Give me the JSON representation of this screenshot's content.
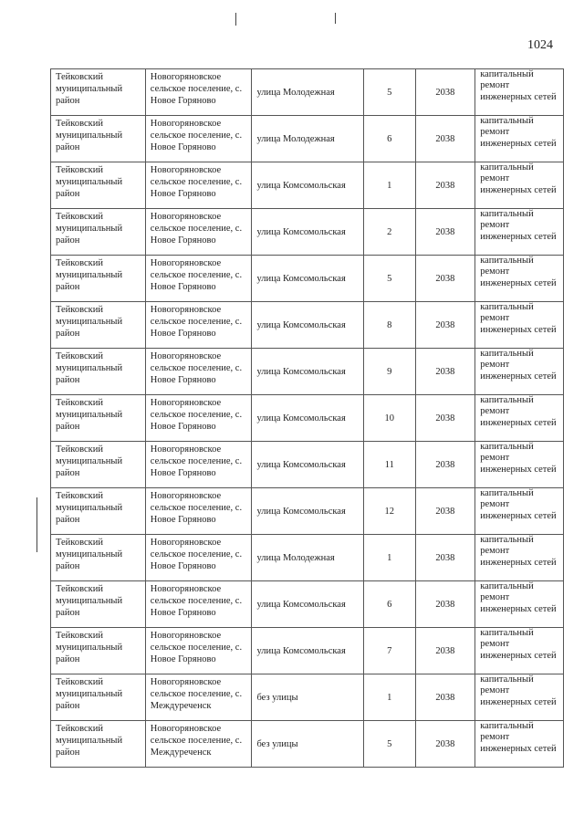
{
  "page_number": "1024",
  "rows": [
    {
      "district": "Тейковский муниципальный район",
      "settlement": "Новогоряновское сельское поселение, с. Новое Горяново",
      "street": "улица Молодежная",
      "house": "5",
      "year": "2038",
      "work": "капитальный ремонт инженерных сетей"
    },
    {
      "district": "Тейковский муниципальный район",
      "settlement": "Новогоряновское сельское поселение, с. Новое Горяново",
      "street": "улица Молодежная",
      "house": "6",
      "year": "2038",
      "work": "капитальный ремонт инженерных сетей"
    },
    {
      "district": "Тейковский муниципальный район",
      "settlement": "Новогоряновское сельское поселение, с. Новое Горяново",
      "street": "улица Комсомольская",
      "house": "1",
      "year": "2038",
      "work": "капитальный ремонт инженерных сетей"
    },
    {
      "district": "Тейковский муниципальный район",
      "settlement": "Новогоряновское сельское поселение, с. Новое Горяново",
      "street": "улица Комсомольская",
      "house": "2",
      "year": "2038",
      "work": "капитальный ремонт инженерных сетей"
    },
    {
      "district": "Тейковский муниципальный район",
      "settlement": "Новогоряновское сельское поселение, с. Новое Горяново",
      "street": "улица Комсомольская",
      "house": "5",
      "year": "2038",
      "work": "капитальный ремонт инженерных сетей"
    },
    {
      "district": "Тейковский муниципальный район",
      "settlement": "Новогоряновское сельское поселение, с. Новое Горяново",
      "street": "улица Комсомольская",
      "house": "8",
      "year": "2038",
      "work": "капитальный ремонт инженерных сетей"
    },
    {
      "district": "Тейковский муниципальный район",
      "settlement": "Новогоряновское сельское поселение, с. Новое Горяново",
      "street": "улица Комсомольская",
      "house": "9",
      "year": "2038",
      "work": "капитальный ремонт инженерных сетей"
    },
    {
      "district": "Тейковский муниципальный район",
      "settlement": "Новогоряновское сельское поселение, с. Новое Горяново",
      "street": "улица Комсомольская",
      "house": "10",
      "year": "2038",
      "work": "капитальный ремонт инженерных сетей"
    },
    {
      "district": "Тейковский муниципальный район",
      "settlement": "Новогоряновское сельское поселение, с. Новое Горяново",
      "street": "улица Комсомольская",
      "house": "11",
      "year": "2038",
      "work": "капитальный ремонт инженерных сетей"
    },
    {
      "district": "Тейковский муниципальный район",
      "settlement": "Новогоряновское сельское поселение, с. Новое Горяново",
      "street": "улица Комсомольская",
      "house": "12",
      "year": "2038",
      "work": "капитальный ремонт инженерных сетей"
    },
    {
      "district": "Тейковский муниципальный район",
      "settlement": "Новогоряновское сельское поселение, с. Новое Горяново",
      "street": "улица Молодежная",
      "house": "1",
      "year": "2038",
      "work": "капитальный ремонт инженерных сетей"
    },
    {
      "district": "Тейковский муниципальный район",
      "settlement": "Новогоряновское сельское поселение, с. Новое Горяново",
      "street": "улица Комсомольская",
      "house": "6",
      "year": "2038",
      "work": "капитальный ремонт инженерных сетей"
    },
    {
      "district": "Тейковский муниципальный район",
      "settlement": "Новогоряновское сельское поселение, с. Новое Горяново",
      "street": "улица Комсомольская",
      "house": "7",
      "year": "2038",
      "work": "капитальный ремонт инженерных сетей"
    },
    {
      "district": "Тейковский муниципальный район",
      "settlement": "Новогоряновское сельское поселение, с. Междуреченск",
      "street": "без улицы",
      "house": "1",
      "year": "2038",
      "work": "капитальный ремонт инженерных сетей"
    },
    {
      "district": "Тейковский муниципальный район",
      "settlement": "Новогоряновское сельское поселение, с. Междуреченск",
      "street": "без улицы",
      "house": "5",
      "year": "2038",
      "work": "капитальный ремонт инженерных сетей"
    }
  ]
}
